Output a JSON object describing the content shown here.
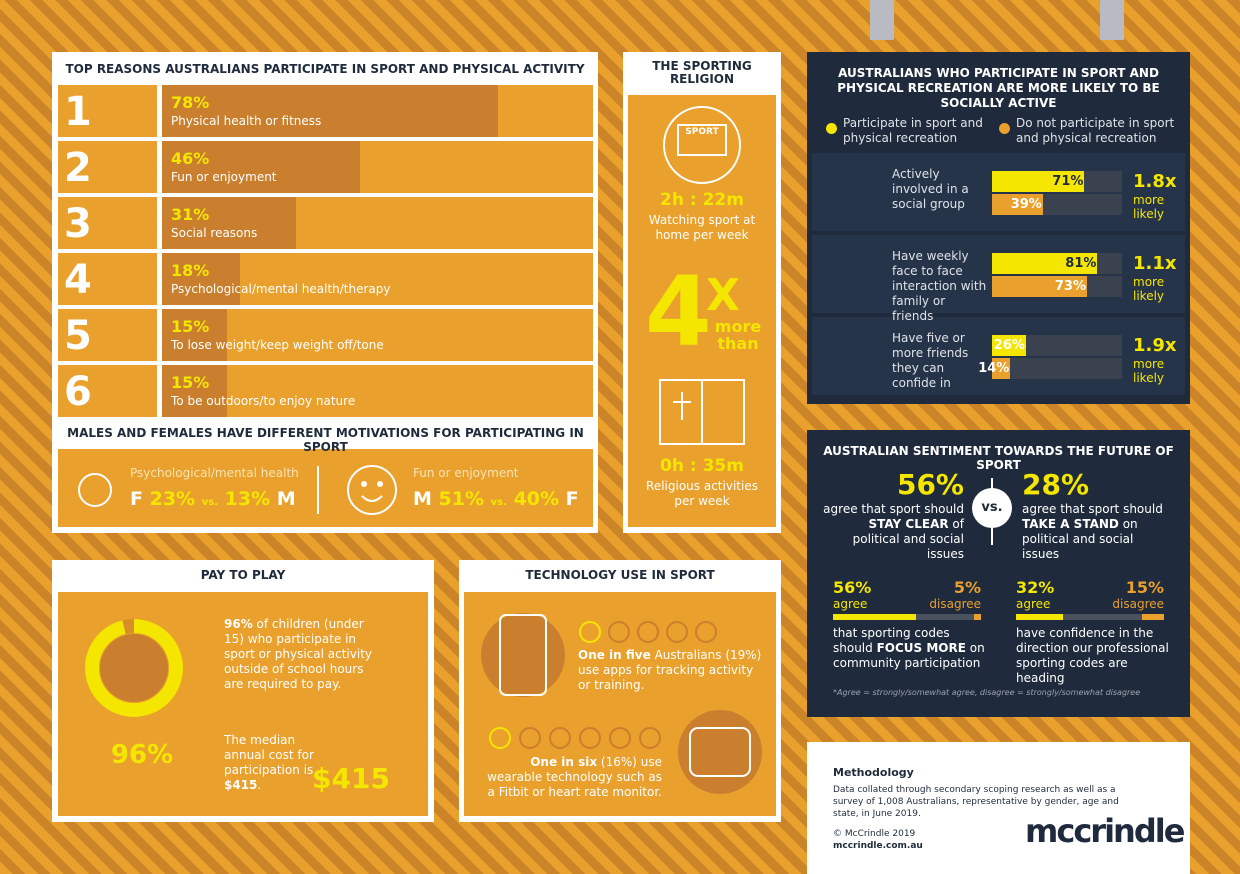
{
  "xlim": [
    0,
    100
  ],
  "reasons": {
    "title": "TOP REASONS AUSTRALIANS PARTICIPATE IN SPORT AND PHYSICAL ACTIVITY",
    "items": [
      {
        "rank": 1,
        "value": 78,
        "value_label": "78%",
        "label": "Physical health or fitness"
      },
      {
        "rank": 2,
        "value": 46,
        "value_label": "46%",
        "label": "Fun or enjoyment"
      },
      {
        "rank": 3,
        "value": 31,
        "value_label": "31%",
        "label": "Social reasons"
      },
      {
        "rank": 4,
        "value": 18,
        "value_label": "18%",
        "label": "Psychological/mental health/therapy"
      },
      {
        "rank": 5,
        "value": 15,
        "value_label": "15%",
        "label": "To lose weight/keep weight off/tone"
      },
      {
        "rank": 6,
        "value": 15,
        "value_label": "15%",
        "label": "To be outdoors/to enjoy nature"
      }
    ]
  },
  "gender": {
    "title": "MALES AND FEMALES HAVE DIFFERENT MOTIVATIONS FOR PARTICIPATING IN SPORT",
    "left": {
      "label": "Psychological/mental health",
      "first": "F",
      "first_value": "23%",
      "vs": "vs.",
      "second_value": "13%",
      "second": "M"
    },
    "right": {
      "label": "Fun or enjoyment",
      "first": "M",
      "first_value": "51%",
      "vs": "vs.",
      "second_value": "40%",
      "second": "F"
    }
  },
  "religion": {
    "title": "THE SPORTING RELIGION",
    "screen": "SPORT",
    "sport_time": "2h : 22m",
    "sport_text": "Watching sport at home per week",
    "multiple": "4",
    "x": "X",
    "more_than": "more than",
    "religion_time": "0h : 35m",
    "religion_text": "Religious activities per week"
  },
  "social": {
    "title": "AUSTRALIANS WHO PARTICIPATE IN SPORT AND PHYSICAL RECREATION ARE MORE LIKELY TO BE SOCIALLY ACTIVE",
    "legend": [
      {
        "name": "Participate in sport and physical recreation",
        "color": "#f5e600"
      },
      {
        "name": "Do not participate in sport and physical recreation",
        "color": "#e9a02c"
      }
    ],
    "rows": [
      {
        "label": "Actively involved in a social group",
        "values": [
          71,
          39
        ],
        "value_labels": [
          "71%",
          "39%"
        ],
        "ratio": "1.8x",
        "note": "more likely"
      },
      {
        "label": "Have weekly face to face interaction with family or friends",
        "values": [
          81,
          73
        ],
        "value_labels": [
          "81%",
          "73%"
        ],
        "ratio": "1.1x",
        "note": "more likely"
      },
      {
        "label": "Have five or more friends they can confide in",
        "values": [
          26,
          14
        ],
        "value_labels": [
          "26%",
          "14%"
        ],
        "ratio": "1.9x",
        "note": "more likely"
      }
    ]
  },
  "sentiment": {
    "title": "AUSTRALIAN SENTIMENT TOWARDS THE FUTURE OF SPORT",
    "left": {
      "value": "56%",
      "pre": "agree that sport should ",
      "bold": "STAY CLEAR",
      "post": " of political and social issues"
    },
    "vs": "vs.",
    "right": {
      "value": "28%",
      "pre": "agree that sport should ",
      "bold": "TAKE A STAND",
      "post": " on political and social issues"
    },
    "bars": [
      {
        "agree": 56,
        "agree_label": "56%",
        "agree_text": "agree",
        "disagree": 5,
        "disagree_label": "5%",
        "disagree_text": "disagree",
        "pre": "that sporting codes should ",
        "bold": "FOCUS MORE",
        "post": " on community participation"
      },
      {
        "agree": 32,
        "agree_label": "32%",
        "agree_text": "agree",
        "disagree": 15,
        "disagree_label": "15%",
        "disagree_text": "disagree",
        "pre": "have confidence in the direction our professional sporting codes are heading",
        "bold": "",
        "post": ""
      }
    ],
    "footnote": "*Agree = strongly/somewhat agree, disagree = strongly/somewhat disagree"
  },
  "methodology": {
    "title": "Methodology",
    "text": "Data collated through secondary scoping research as well as a survey of 1,008 Australians, representative by gender, age and state, in June 2019.",
    "copyright": "© McCrindle 2019",
    "url": "mccrindle.com.au",
    "logo": "mccrindle"
  },
  "pay": {
    "title": "PAY TO PLAY",
    "value": 96,
    "value_label": "96%",
    "bold": "96%",
    "text": " of children (under 15) who participate in sport or physical activity outside of school hours are required to pay.",
    "cost_pre": "The median annual cost for participation is ",
    "cost_bold": "$415",
    "cost_post": ".",
    "cost": "$415"
  },
  "tech": {
    "title": "TECHNOLOGY USE IN SPORT",
    "apps_bold": "One in five",
    "apps_text": " Australians (19%) use apps for tracking activity or training.",
    "wear_bold": "One in six",
    "wear_text": " (16%) use wearable technology such as a Fitbit or heart rate monitor."
  }
}
